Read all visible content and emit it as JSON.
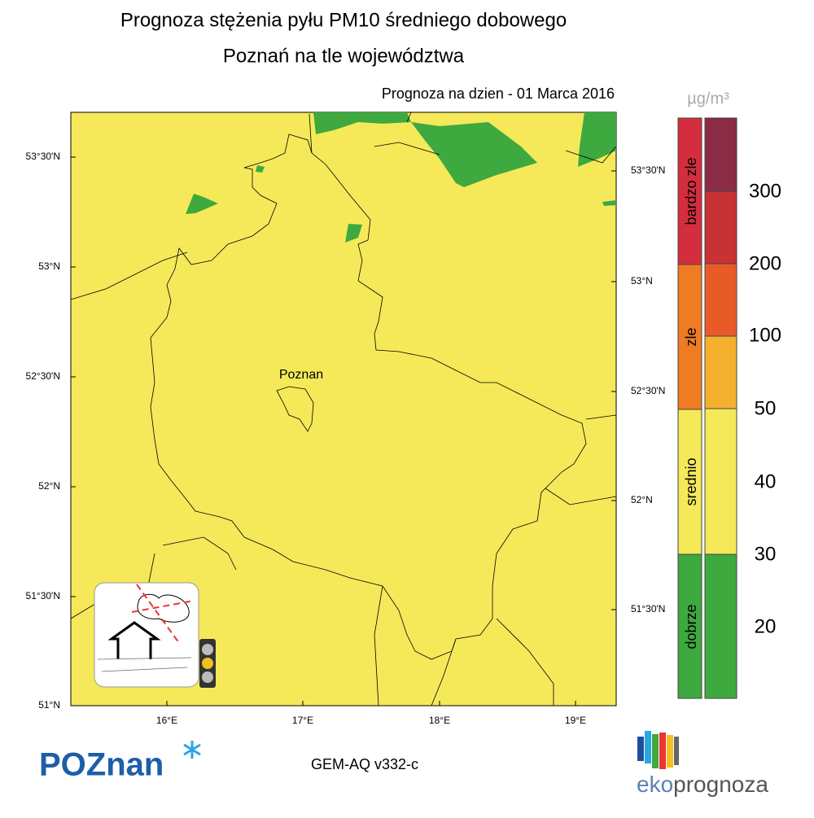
{
  "header": {
    "title": "Prognoza stężenia pyłu PM10 średniego dobowego",
    "subtitle": "Poznań na tle województwa",
    "date": "Prognoza na dzien -  01 Marca 2016"
  },
  "map": {
    "lat_labels_left": [
      "53°30'N",
      "53°N",
      "52°30'N",
      "52°N",
      "51°30'N",
      "51°N"
    ],
    "lat_labels_right": [
      "53°30'N",
      "53°N",
      "52°30'N",
      "52°N",
      "51°30'N"
    ],
    "lon_labels": [
      "16°E",
      "17°E",
      "18°E",
      "19°E"
    ],
    "city": "Poznan"
  },
  "legend": {
    "unit": "µg/m³",
    "categories": [
      "bardzo zle",
      "zle",
      "srednio",
      "dobrze"
    ],
    "levels": [
      "300",
      "200",
      "100",
      "50",
      "40",
      "30",
      "20"
    ]
  },
  "footer": {
    "model": "GEM-AQ v332-c",
    "logo_left": "POZnan",
    "logo_right_a": "eko",
    "logo_right_b": "prognoza"
  }
}
